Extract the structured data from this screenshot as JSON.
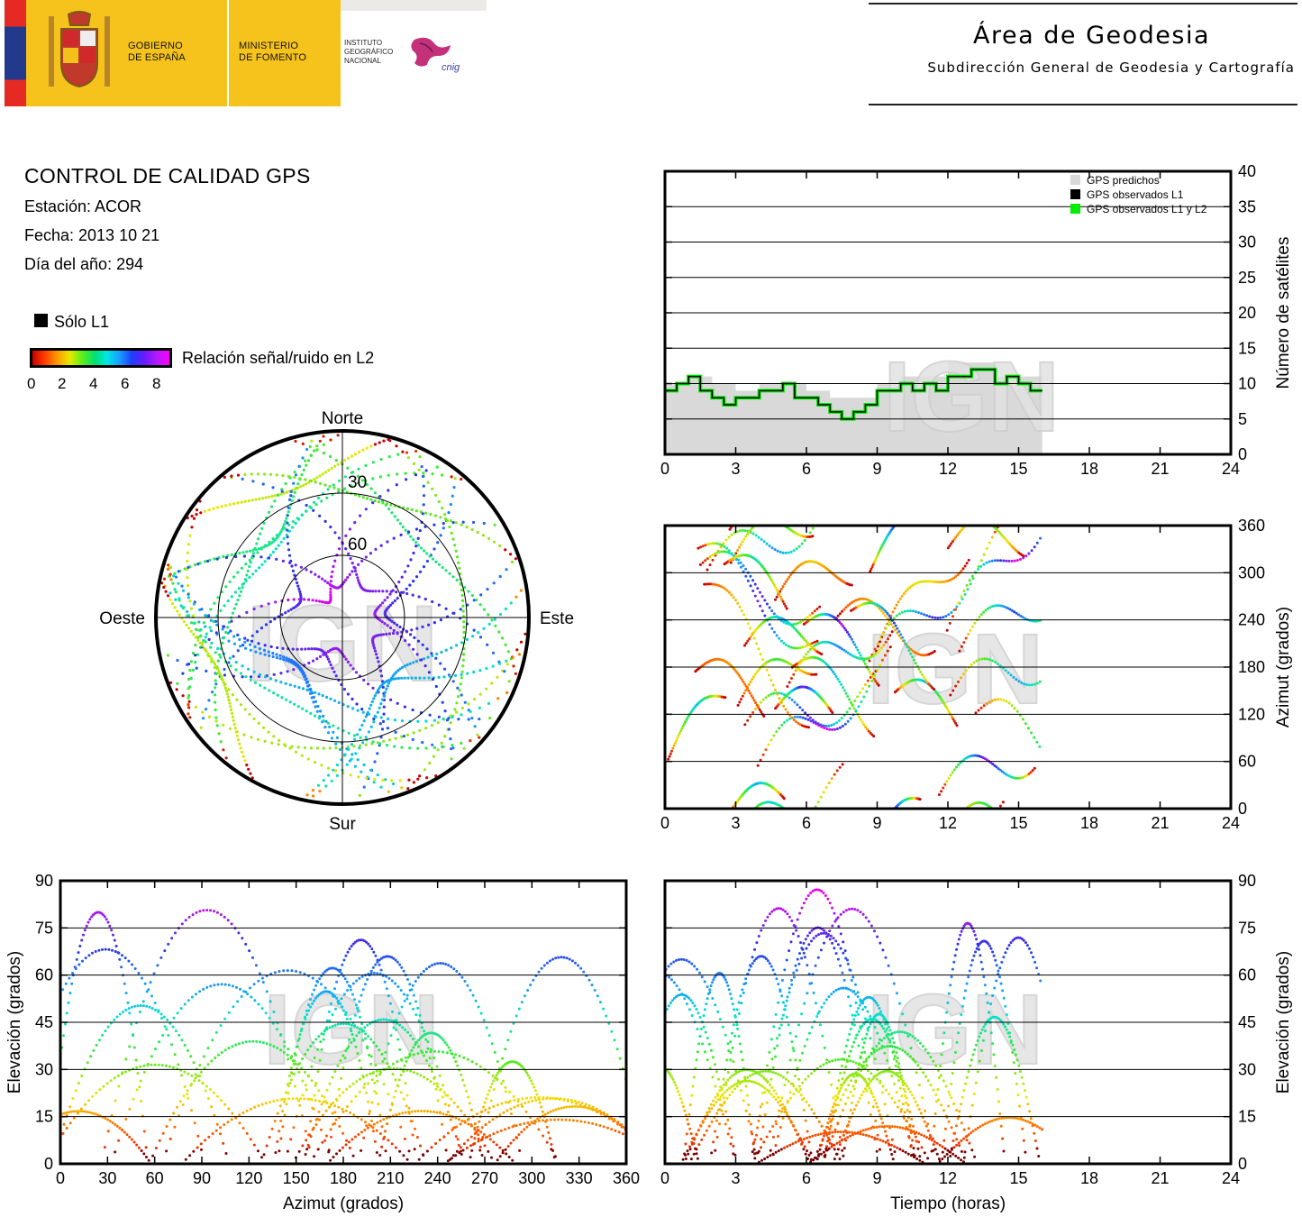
{
  "header": {
    "gov_line1": "GOBIERNO",
    "gov_line2": "DE ESPAÑA",
    "min_line1": "MINISTERIO",
    "min_line2": "DE FOMENTO",
    "ign_line1": "INSTITUTO",
    "ign_line2": "GEOGRÁFICO",
    "ign_line3": "NACIONAL",
    "cnig": "cnig",
    "area_title": "Área de Geodesia",
    "area_subtitle": "Subdirección General de Geodesia y Cartografía",
    "logo_yellow": "#f6c31c"
  },
  "info": {
    "title": "CONTROL DE CALIDAD GPS",
    "station": "Estación: ACOR",
    "date": "Fecha: 2013 10 21",
    "doy": "Día del año: 294",
    "legend_l1": "Sólo L1",
    "colorbar_label": "Relación señal/ruido en L2",
    "colorbar_ticks": [
      "0",
      "2",
      "4",
      "6",
      "8"
    ]
  },
  "chart_data": [
    {
      "id": "satellite-count",
      "type": "area",
      "ylabel": "Número de satélites",
      "xlim": [
        0,
        24
      ],
      "ylim": [
        0,
        40
      ],
      "xticks": [
        0,
        3,
        6,
        9,
        12,
        15,
        18,
        21,
        24
      ],
      "yticks": [
        0,
        5,
        10,
        15,
        20,
        25,
        30,
        35,
        40
      ],
      "legend": [
        "GPS predichos",
        "GPS observados L1",
        "GPS observados L1 y L2"
      ],
      "legend_position": "top-right",
      "colors": {
        "predicted": "#d9d9d9",
        "l1": "#000000",
        "l1l2": "#00ee00"
      },
      "grid": true,
      "series": [
        {
          "name": "GPS predichos",
          "x": [
            0,
            1,
            2,
            3,
            4,
            5,
            6,
            7,
            8,
            9,
            10,
            11,
            12,
            13,
            14,
            15,
            16
          ],
          "y": [
            10,
            11,
            10,
            9,
            10,
            10,
            9,
            8,
            8,
            10,
            11,
            11,
            13,
            13,
            11,
            11,
            10
          ]
        },
        {
          "name": "GPS observados L1",
          "x": [
            0,
            0.5,
            1,
            1.5,
            2,
            2.5,
            3,
            3.5,
            4,
            4.5,
            5,
            5.5,
            6,
            6.5,
            7,
            7.5,
            8,
            8.5,
            9,
            9.5,
            10,
            10.5,
            11,
            11.5,
            12,
            12.5,
            13,
            13.5,
            14,
            14.5,
            15,
            15.5,
            16
          ],
          "y": [
            9,
            10,
            11,
            9,
            8,
            7,
            8,
            8,
            9,
            9,
            10,
            8,
            8,
            7,
            6,
            5,
            6,
            7,
            9,
            9,
            10,
            9,
            10,
            9,
            11,
            11,
            12,
            12,
            10,
            11,
            10,
            9,
            9
          ]
        },
        {
          "name": "GPS observados L1 y L2",
          "x": [
            0,
            0.5,
            1,
            1.5,
            2,
            2.5,
            3,
            3.5,
            4,
            4.5,
            5,
            5.5,
            6,
            6.5,
            7,
            7.5,
            8,
            8.5,
            9,
            9.5,
            10,
            10.5,
            11,
            11.5,
            12,
            12.5,
            13,
            13.5,
            14,
            14.5,
            15,
            15.5,
            16
          ],
          "y": [
            9,
            10,
            11,
            9,
            8,
            7,
            8,
            8,
            9,
            9,
            10,
            8,
            8,
            7,
            6,
            5,
            6,
            7,
            9,
            9,
            10,
            9,
            10,
            9,
            11,
            11,
            12,
            12,
            10,
            11,
            10,
            9,
            9
          ]
        }
      ]
    },
    {
      "id": "sky-plot",
      "type": "scatter",
      "projection": "polar",
      "direction_labels": {
        "north": "Norte",
        "south": "Sur",
        "east": "Este",
        "west": "Oeste"
      },
      "elevation_rings": [
        "30",
        "60"
      ],
      "rlim": [
        0,
        90
      ]
    },
    {
      "id": "azimuth-time",
      "type": "scatter",
      "ylabel": "Azimut (grados)",
      "xlim": [
        0,
        24
      ],
      "ylim": [
        0,
        360
      ],
      "xticks": [
        0,
        3,
        6,
        9,
        12,
        15,
        18,
        21,
        24
      ],
      "yticks": [
        0,
        60,
        120,
        180,
        240,
        300,
        360
      ],
      "grid": true
    },
    {
      "id": "elevation-azimuth",
      "type": "scatter",
      "xlabel": "Azimut (grados)",
      "ylabel": "Elevación (grados)",
      "xlim": [
        0,
        360
      ],
      "ylim": [
        0,
        90
      ],
      "xticks": [
        0,
        30,
        60,
        90,
        120,
        150,
        180,
        210,
        240,
        270,
        300,
        330,
        360
      ],
      "yticks": [
        0,
        15,
        30,
        45,
        60,
        75,
        90
      ],
      "grid": true
    },
    {
      "id": "elevation-time",
      "type": "scatter",
      "xlabel": "Tiempo (horas)",
      "ylabel": "Elevación (grados)",
      "xlim": [
        0,
        24
      ],
      "ylim": [
        0,
        90
      ],
      "xticks": [
        0,
        3,
        6,
        9,
        12,
        15,
        18,
        21,
        24
      ],
      "yticks": [
        0,
        15,
        30,
        45,
        60,
        75,
        90
      ],
      "grid": true
    }
  ]
}
